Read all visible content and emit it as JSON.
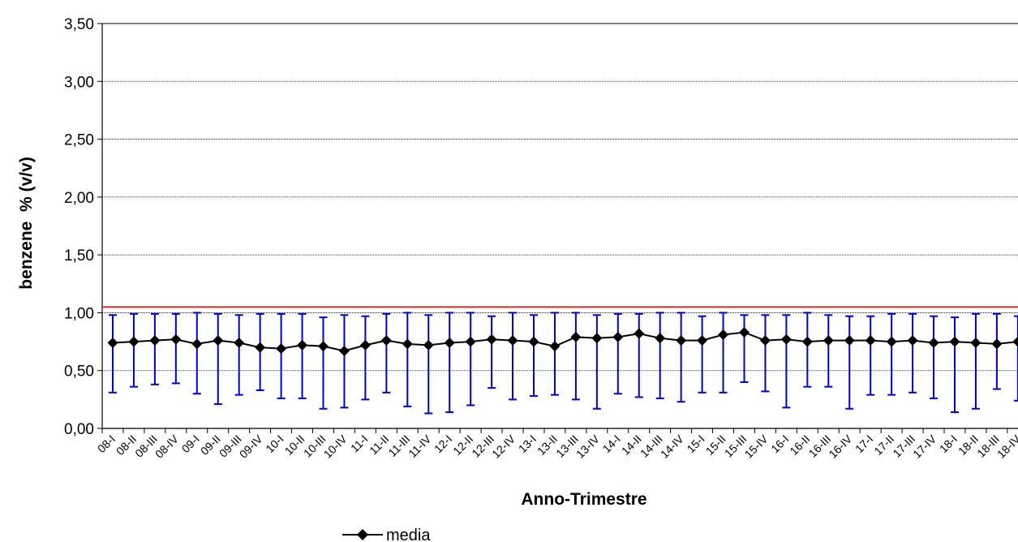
{
  "chart_data": {
    "type": "line",
    "title": "",
    "xlabel": "Anno-Trimestre",
    "ylabel": "benzene  % (v/v)",
    "ylim": [
      0,
      3.5
    ],
    "yticks": [
      "0,00",
      "0,50",
      "1,00",
      "1,50",
      "2,00",
      "2,50",
      "3,00",
      "3,50"
    ],
    "grid": "horizontal-dotted",
    "legend_position": "bottom",
    "reference_line": {
      "value": 1.05,
      "color": "#ff0000"
    },
    "categories": [
      "08-I",
      "08-II",
      "08-III",
      "08-IV",
      "09-I",
      "09-II",
      "09-III",
      "09-IV",
      "10-I",
      "10-II",
      "10-III",
      "10-IV",
      "11-I",
      "11-II",
      "11-III",
      "11-IV",
      "12-I",
      "12-II",
      "12-III",
      "12-IV",
      "13-I",
      "13-II",
      "13-III",
      "13-IV",
      "14-I",
      "14-II",
      "14-III",
      "14-IV",
      "15-I",
      "15-II",
      "15-III",
      "15-IV",
      "16-I",
      "16-II",
      "16-III",
      "16-IV",
      "17-I",
      "17-II",
      "17-III",
      "17-IV",
      "18-I",
      "18-II",
      "18-III",
      "18-IV"
    ],
    "series": [
      {
        "name": "media",
        "color": "#000000",
        "error_bar_color": "#0000cc",
        "values": [
          0.74,
          0.75,
          0.76,
          0.77,
          0.73,
          0.76,
          0.74,
          0.7,
          0.69,
          0.72,
          0.71,
          0.67,
          0.72,
          0.76,
          0.73,
          0.72,
          0.74,
          0.75,
          0.77,
          0.76,
          0.75,
          0.71,
          0.79,
          0.78,
          0.79,
          0.82,
          0.78,
          0.76,
          0.76,
          0.81,
          0.83,
          0.76,
          0.77,
          0.75,
          0.76,
          0.76,
          0.76,
          0.75,
          0.76,
          0.74,
          0.75,
          0.74,
          0.73,
          0.75
        ],
        "max": [
          0.98,
          0.99,
          0.99,
          0.99,
          1.0,
          0.99,
          0.98,
          0.99,
          0.99,
          0.99,
          0.96,
          0.98,
          0.97,
          0.99,
          1.0,
          0.98,
          1.0,
          1.0,
          0.97,
          1.0,
          0.98,
          1.0,
          1.0,
          0.98,
          0.99,
          0.99,
          1.0,
          1.0,
          0.97,
          1.0,
          0.98,
          0.98,
          0.98,
          1.0,
          0.98,
          0.97,
          0.97,
          0.99,
          0.99,
          0.97,
          0.96,
          0.99,
          0.99,
          0.97
        ],
        "min": [
          0.31,
          0.36,
          0.38,
          0.39,
          0.3,
          0.21,
          0.29,
          0.33,
          0.26,
          0.26,
          0.17,
          0.18,
          0.25,
          0.31,
          0.19,
          0.13,
          0.14,
          0.2,
          0.35,
          0.25,
          0.28,
          0.29,
          0.25,
          0.17,
          0.3,
          0.27,
          0.26,
          0.23,
          0.31,
          0.31,
          0.4,
          0.32,
          0.18,
          0.36,
          0.36,
          0.17,
          0.29,
          0.29,
          0.31,
          0.26,
          0.14,
          0.17,
          0.34,
          0.24
        ]
      }
    ]
  }
}
